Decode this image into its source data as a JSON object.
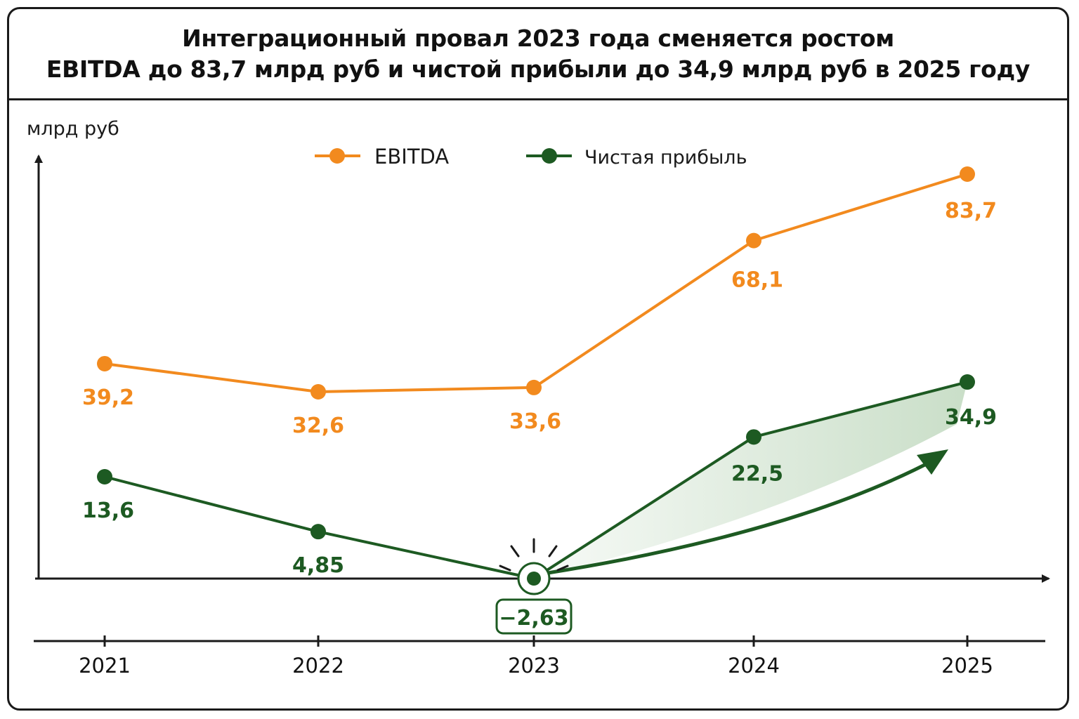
{
  "title": {
    "line1": "Интеграционный провал 2023 года сменяется ростом",
    "line2": "EBITDA до 83,7 млрд руб и чистой прибыли до 34,9 млрд руб в 2025 году"
  },
  "colors": {
    "ebitda": "#f28a1e",
    "net_profit": "#1d5a22",
    "axis": "#1a1a1a",
    "frame": "#1a1a1a",
    "fill": "#3f8a3a"
  },
  "chart_data": {
    "type": "line",
    "title": "Интеграционный провал 2023 года сменяется ростом EBITDA до 83,7 млрд руб и чистой прибыли до 34,9 млрд руб в 2025 году",
    "ylabel": "млрд руб",
    "xlabel": "",
    "categories": [
      "2021",
      "2022",
      "2023",
      "2024",
      "2025"
    ],
    "series": [
      {
        "name": "EBITDA",
        "values": [
          39.2,
          32.6,
          33.6,
          68.1,
          83.7
        ],
        "labels": [
          "39,2",
          "32,6",
          "33,6",
          "68,1",
          "83,7"
        ]
      },
      {
        "name": "Чистая прибыль",
        "values": [
          13.6,
          4.85,
          -2.63,
          22.5,
          34.9
        ],
        "labels": [
          "13,6",
          "4,85",
          "−2,63",
          "22,5",
          "34,9"
        ]
      }
    ],
    "highlight": {
      "series": "Чистая прибыль",
      "category": "2023",
      "label": "−2,63"
    },
    "legend": "top-center",
    "grid": false
  }
}
